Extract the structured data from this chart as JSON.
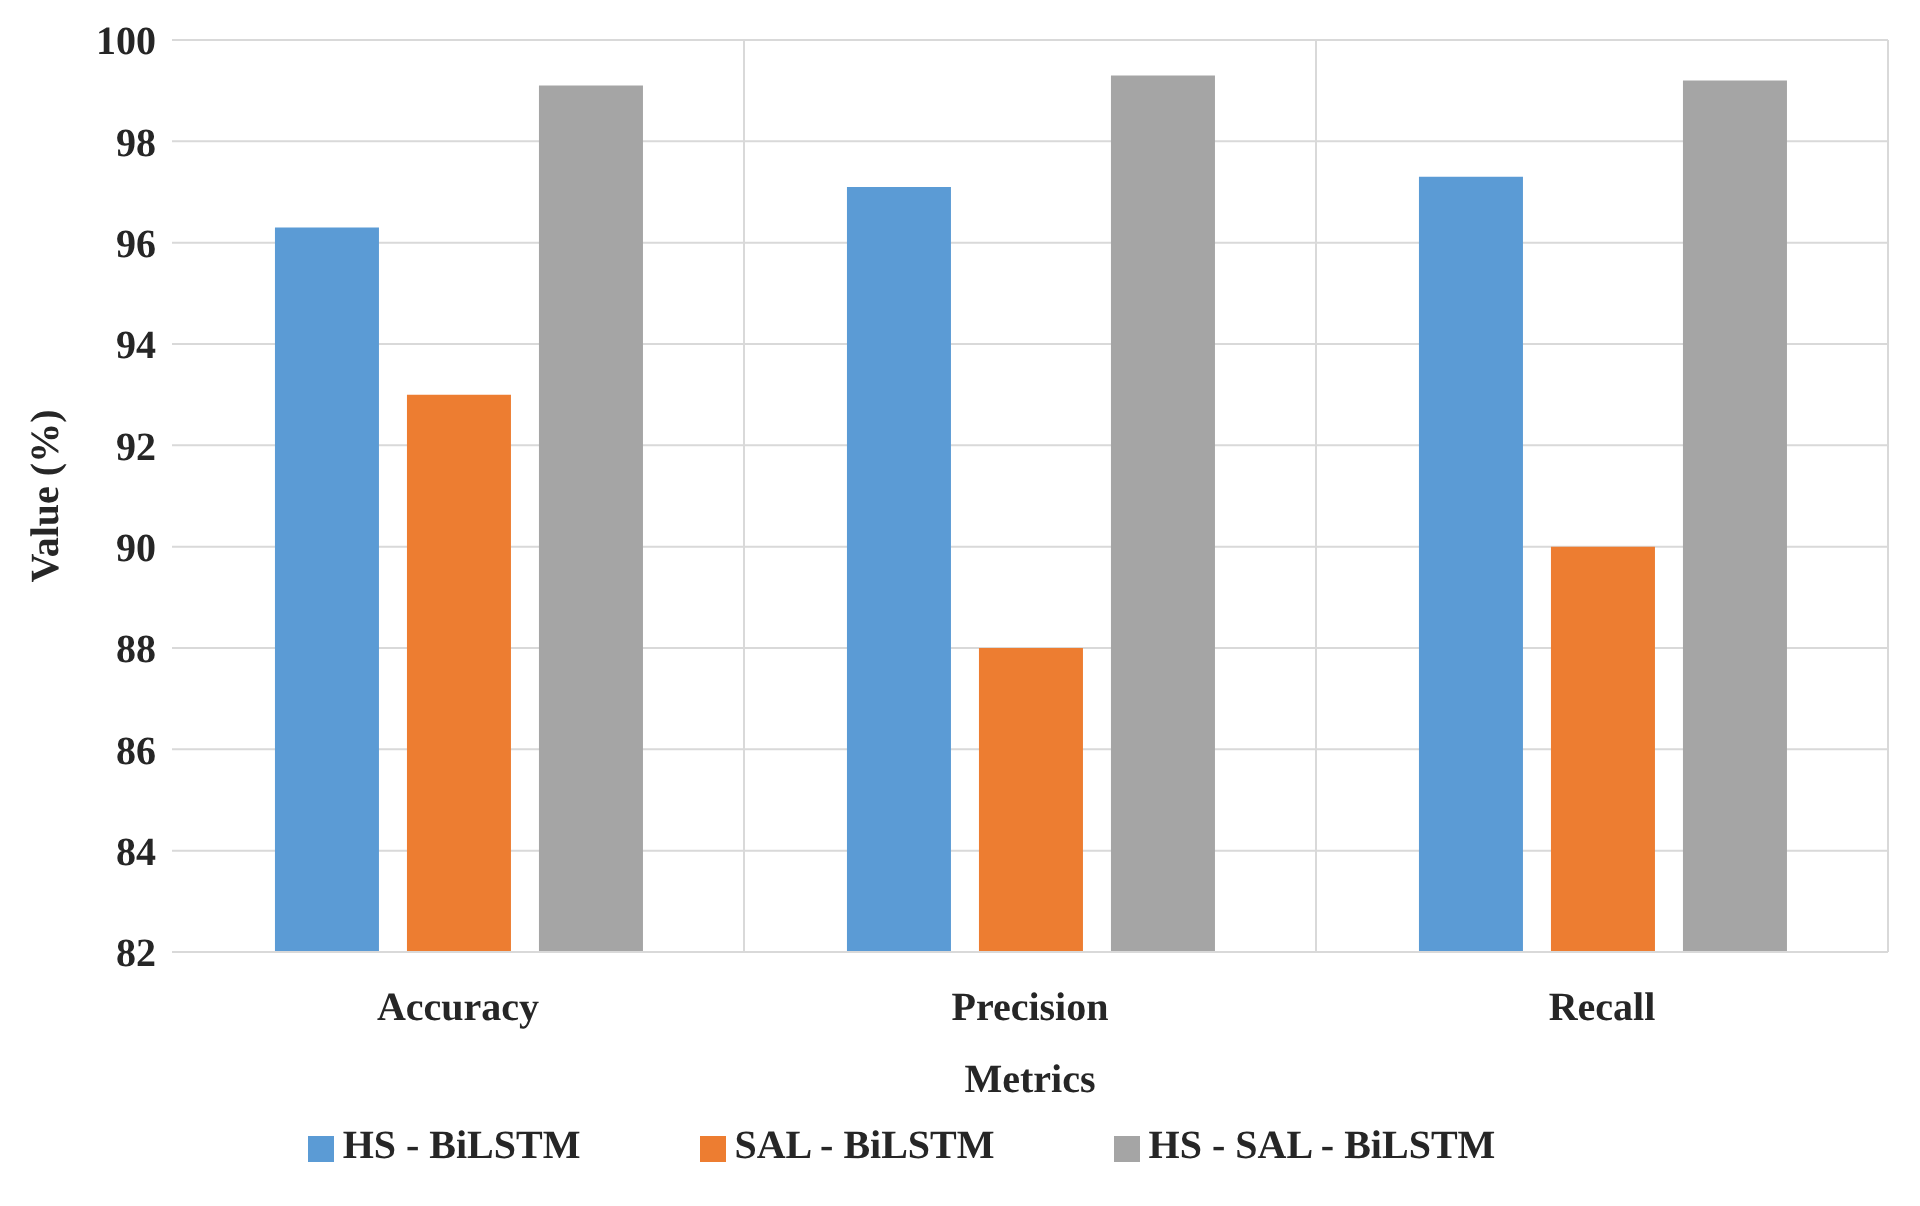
{
  "chart_data": {
    "type": "bar",
    "xlabel": "Metrics",
    "ylabel": "Value (%)",
    "categories": [
      "Accuracy",
      "Precision",
      "Recall"
    ],
    "series": [
      {
        "name": "HS - BiLSTM",
        "color": "#5b9bd5",
        "values": [
          96.3,
          97.1,
          97.3
        ]
      },
      {
        "name": "SAL - BiLSTM",
        "color": "#ed7d31",
        "values": [
          93.0,
          88.0,
          90.0
        ]
      },
      {
        "name": "HS - SAL - BiLSTM",
        "color": "#a5a5a5",
        "values": [
          99.1,
          99.3,
          99.2
        ]
      }
    ],
    "ylim": [
      82,
      100
    ],
    "yticks": [
      82,
      84,
      86,
      88,
      90,
      92,
      94,
      96,
      98,
      100
    ],
    "grid": true,
    "legend": "bottom"
  }
}
